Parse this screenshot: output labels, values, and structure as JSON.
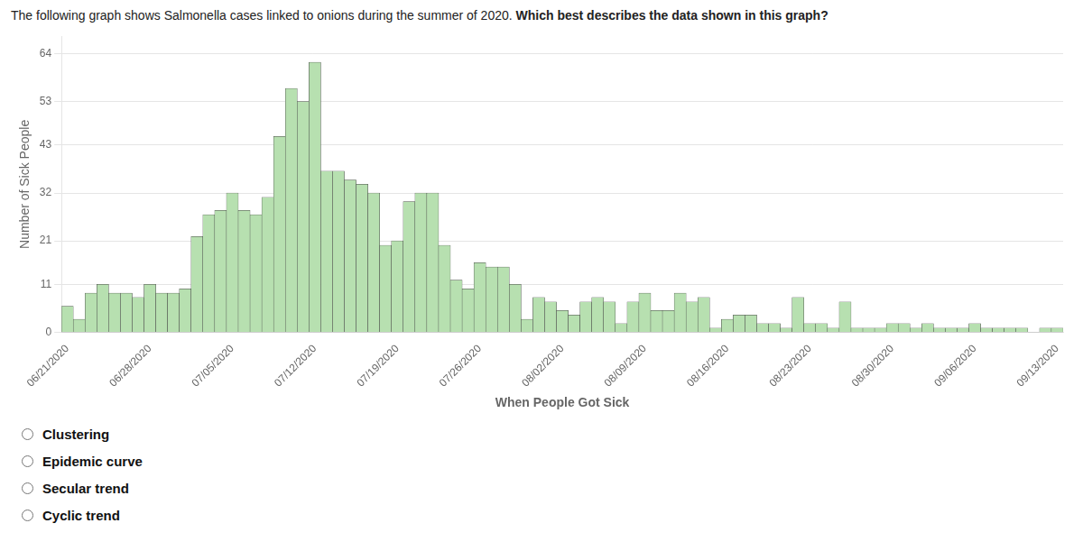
{
  "chart_data": {
    "type": "bar",
    "title": "The following graph shows Salmonella cases linked to onions during the summer of 2020.",
    "subtitle": "Which best describes the data shown in this graph?",
    "x_label": "When People Got Sick",
    "y_label": "Number of Sick People",
    "categories": [
      "06/21/2020",
      null,
      null,
      null,
      null,
      null,
      null,
      "06/28/2020",
      null,
      null,
      null,
      null,
      null,
      null,
      "07/05/2020",
      null,
      null,
      null,
      null,
      null,
      null,
      "07/12/2020",
      null,
      null,
      null,
      null,
      null,
      null,
      "07/19/2020",
      null,
      null,
      null,
      null,
      null,
      null,
      "07/26/2020",
      null,
      null,
      null,
      null,
      null,
      null,
      "08/02/2020",
      null,
      null,
      null,
      null,
      null,
      null,
      "08/09/2020",
      null,
      null,
      null,
      null,
      null,
      null,
      "08/16/2020",
      null,
      null,
      null,
      null,
      null,
      null,
      "08/23/2020",
      null,
      null,
      null,
      null,
      null,
      null,
      "08/30/2020",
      null,
      null,
      null,
      null,
      null,
      null,
      "09/06/2020",
      null,
      null,
      null,
      null,
      null,
      null,
      "09/13/2020"
    ],
    "values": [
      6,
      3,
      9,
      11,
      9,
      9,
      8,
      11,
      9,
      9,
      10,
      22,
      27,
      28,
      32,
      28,
      27,
      31,
      45,
      56,
      53,
      62,
      37,
      37,
      35,
      34,
      32,
      20,
      21,
      30,
      32,
      32,
      20,
      12,
      10,
      16,
      15,
      15,
      11,
      3,
      8,
      7,
      5,
      4,
      7,
      8,
      7,
      2,
      7,
      9,
      5,
      5,
      9,
      7,
      8,
      1,
      3,
      4,
      4,
      2,
      2,
      1,
      8,
      2,
      2,
      1,
      7,
      1,
      1,
      1,
      2,
      2,
      1,
      2,
      1,
      1,
      1,
      2,
      1,
      1,
      1,
      1,
      0,
      1,
      1
    ],
    "color": "#b7e0b0",
    "ylim": [
      0,
      68
    ],
    "yticks": [
      0,
      11,
      21,
      32,
      43,
      53,
      64
    ],
    "grid": true,
    "annotations": [
      "Clustering",
      "Epidemic curve",
      "Secular trend",
      "Cyclic trend"
    ]
  }
}
